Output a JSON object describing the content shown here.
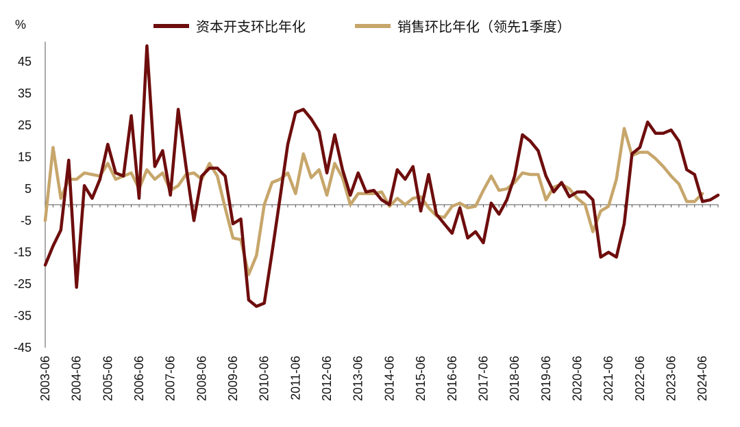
{
  "chart_data": {
    "type": "line",
    "ylabel": "%",
    "ylim": [
      -45,
      50
    ],
    "y_ticks": [
      45,
      35,
      25,
      15,
      5,
      -5,
      -15,
      -25,
      -35,
      -45
    ],
    "x_start": "2003-06",
    "x_step": "quarter",
    "x_tick_labels": [
      "2003-06",
      "2004-06",
      "2005-06",
      "2006-06",
      "2007-06",
      "2008-06",
      "2009-06",
      "2010-06",
      "2011-06",
      "2012-06",
      "2013-06",
      "2014-06",
      "2015-06",
      "2016-06",
      "2017-06",
      "2018-06",
      "2019-06",
      "2020-06",
      "2021-06",
      "2022-06",
      "2023-06",
      "2024-06"
    ],
    "legend": [
      "资本开支环比年化",
      "销售环比年化（领先1季度）"
    ],
    "colors": {
      "capex": "#6e0d0d",
      "sales": "#c7a66b",
      "axis": "#555555"
    },
    "series": [
      {
        "name": "资本开支环比年化",
        "values": [
          -19,
          -13,
          -8,
          14,
          -26,
          6,
          2,
          8,
          19,
          10,
          9,
          28,
          2,
          50,
          12,
          17,
          3,
          30,
          12,
          -5,
          9,
          11.5,
          11.5,
          9,
          -6,
          -4.5,
          -30,
          -32,
          -31,
          -15,
          2,
          19,
          29,
          30,
          27,
          23,
          10,
          22,
          11,
          3,
          10,
          4,
          4.5,
          1.5,
          0,
          11,
          8,
          12,
          -2,
          9.5,
          -3,
          -6,
          -9,
          -1,
          -10.5,
          -8.5,
          -12,
          0.5,
          -3,
          1.5,
          9,
          22,
          20,
          17,
          9,
          4,
          7,
          2.5,
          4,
          4,
          1.5,
          -16.5,
          -15,
          -16.5,
          -6,
          16,
          18,
          26,
          22.5,
          22.5,
          23.5,
          20,
          11,
          9.5,
          1,
          1.5,
          3
        ]
      },
      {
        "name": "销售环比年化（领先1季度）",
        "values": [
          -5,
          18,
          2,
          8,
          8,
          10,
          9.5,
          9,
          13,
          8,
          9,
          10,
          5,
          11,
          8,
          10,
          4.5,
          6,
          9.5,
          10,
          8,
          13,
          9,
          -1,
          -10.5,
          -11,
          -22,
          -16,
          0,
          7,
          8,
          10,
          3.5,
          16,
          8.5,
          11,
          3,
          13,
          8.5,
          0,
          3.5,
          3.5,
          3.5,
          4,
          -0.5,
          2,
          0,
          2,
          2.5,
          -1,
          -3.5,
          -4,
          -0.5,
          0.5,
          -1,
          -0.5,
          4.5,
          9,
          4.5,
          5,
          7,
          10,
          9.5,
          9.5,
          1.5,
          5.5,
          6.5,
          5,
          2,
          0,
          -8.5,
          -2,
          -0.5,
          8,
          24,
          15.5,
          16.5,
          16.5,
          14.5,
          12,
          9,
          6.5,
          1,
          1,
          3.5
        ]
      }
    ]
  }
}
